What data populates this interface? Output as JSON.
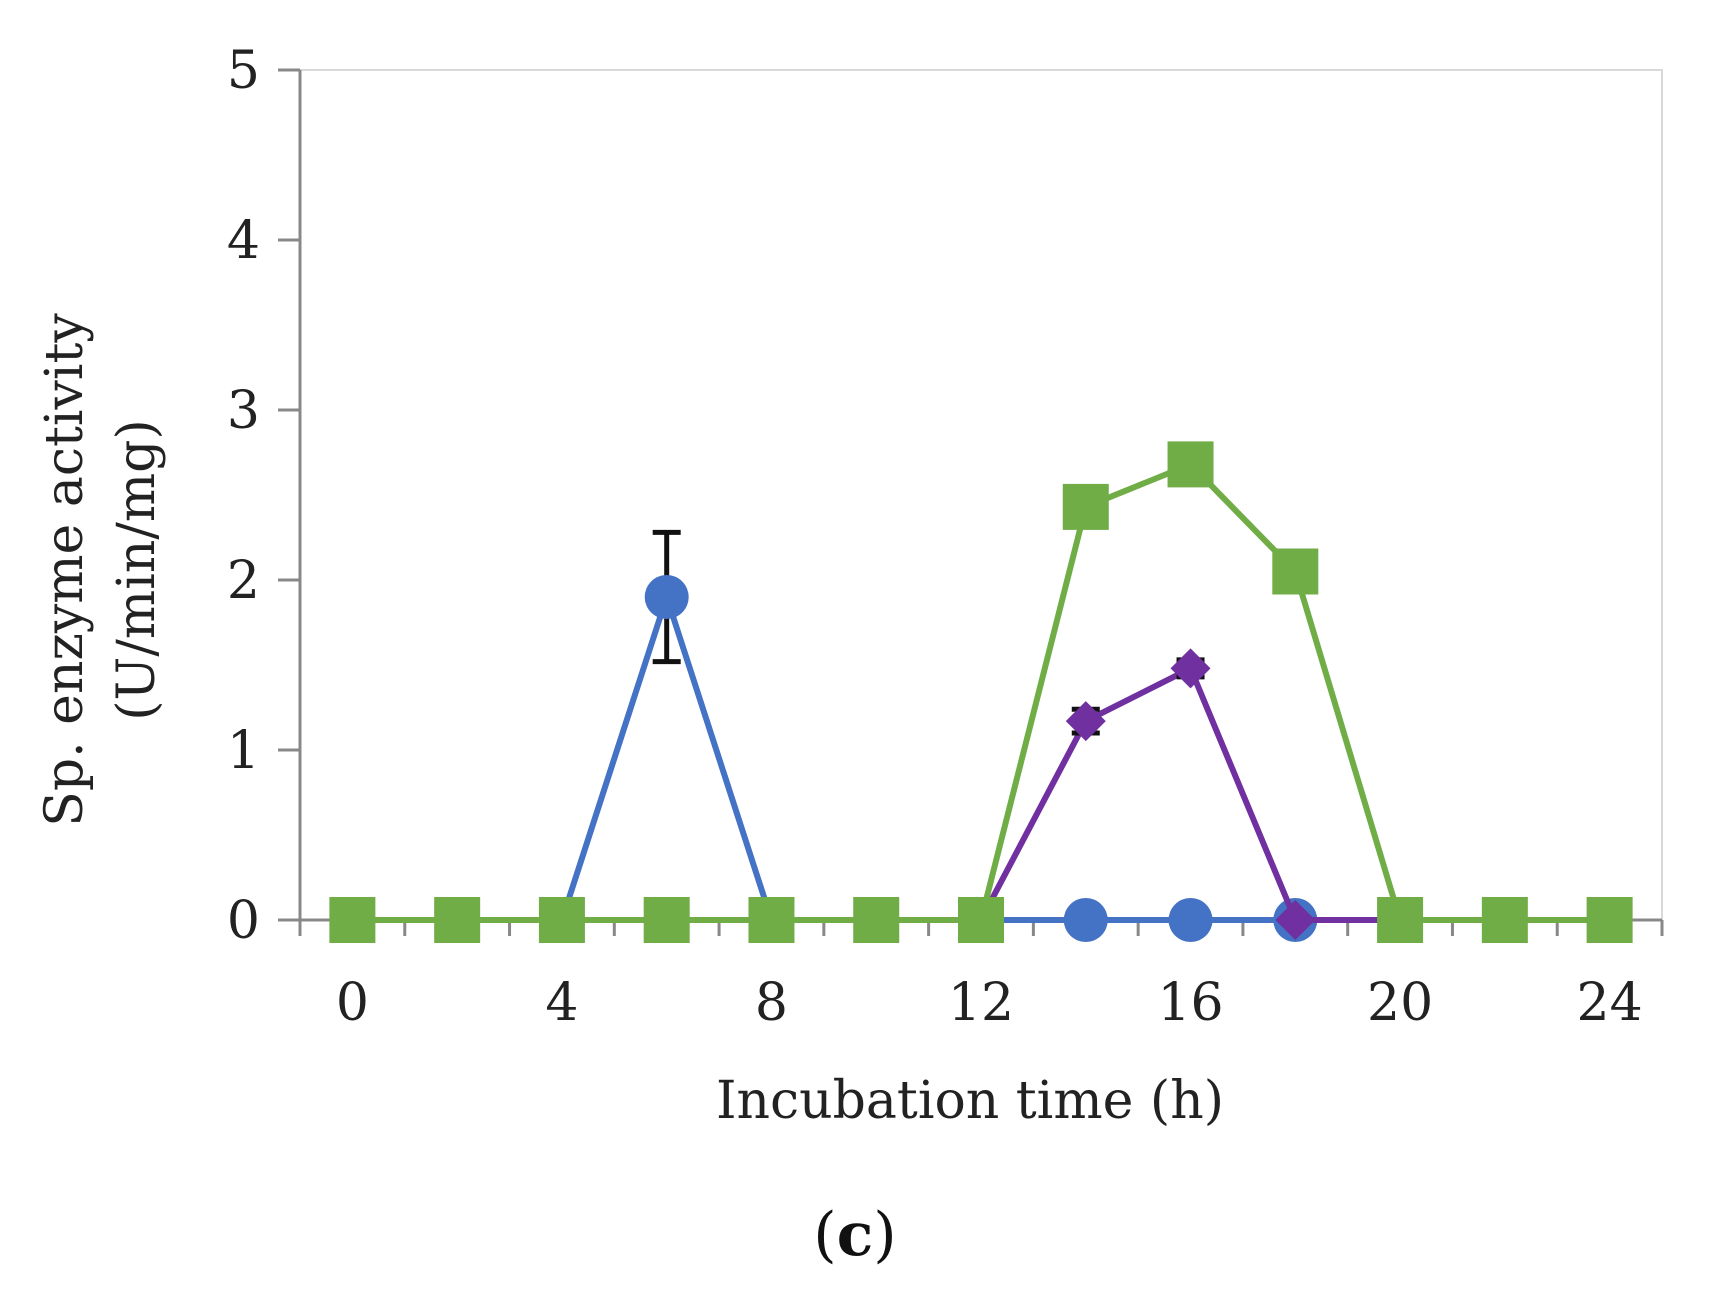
{
  "chart_data": {
    "type": "line",
    "title": "",
    "xlabel": "Incubation time (h)",
    "ylabel_line1": "Sp. enzyme activity",
    "ylabel_line2": "(U/min/mg)",
    "xlim": [
      -1,
      25
    ],
    "ylim": [
      0,
      5
    ],
    "x_ticks": [
      "0",
      "4",
      "8",
      "12",
      "16",
      "20",
      "24"
    ],
    "x_tick_values": [
      0,
      4,
      8,
      12,
      16,
      20,
      24
    ],
    "y_ticks": [
      "0",
      "1",
      "2",
      "3",
      "4",
      "5"
    ],
    "y_tick_values": [
      0,
      1,
      2,
      3,
      4,
      5
    ],
    "grid": false,
    "x": [
      0,
      2,
      4,
      6,
      8,
      10,
      12,
      14,
      16,
      18,
      20,
      22,
      24
    ],
    "series": [
      {
        "name": "blue-circles",
        "color": "#4472C4",
        "marker": "circle",
        "values": [
          0,
          0,
          0,
          1.9,
          0,
          0,
          0,
          0,
          0,
          0,
          0,
          0,
          0
        ],
        "errors": [
          0,
          0,
          0,
          0.38,
          0,
          0,
          0,
          0,
          0,
          0,
          0,
          0,
          0
        ]
      },
      {
        "name": "purple-diamonds",
        "color": "#7030A0",
        "marker": "diamond",
        "values": [
          0,
          0,
          0,
          0,
          0,
          0,
          0,
          1.17,
          1.48,
          0,
          0,
          0,
          0
        ],
        "errors": [
          0,
          0,
          0,
          0,
          0,
          0,
          0,
          0.07,
          0.05,
          0,
          0,
          0,
          0
        ]
      },
      {
        "name": "green-squares",
        "color": "#70AD47",
        "marker": "square",
        "values": [
          0,
          0,
          0,
          0,
          0,
          0,
          0,
          2.43,
          2.68,
          2.05,
          0,
          0,
          0
        ],
        "errors": [
          0,
          0,
          0,
          0,
          0,
          0,
          0,
          0,
          0,
          0,
          0,
          0,
          0
        ]
      }
    ]
  },
  "figure": {
    "panel_label": "c"
  }
}
